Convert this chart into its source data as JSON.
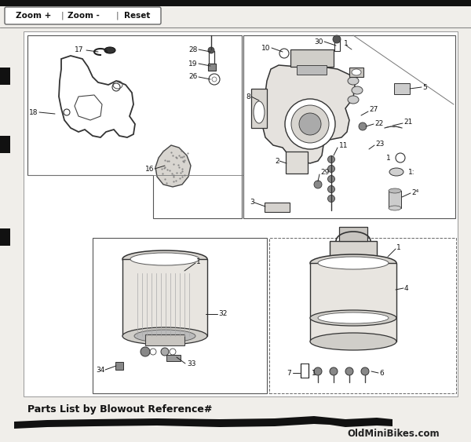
{
  "bg_color": "#f0eeea",
  "toolbar_text": "Zoom + | Zoom -  |   Reset",
  "footer_text": "Parts List by Blowout Reference#",
  "watermark": "OldMiniBikes.com",
  "top_stripe_color": "#1a1a1a",
  "toolbar_bg": "#e8e6e2",
  "toolbar_border": "#555555",
  "diagram_bg": "#f5f3ef",
  "border_color": "#444444",
  "line_color": "#222222",
  "text_color": "#111111",
  "light_gray": "#cccccc",
  "mid_gray": "#999999",
  "dark_gray": "#555555"
}
